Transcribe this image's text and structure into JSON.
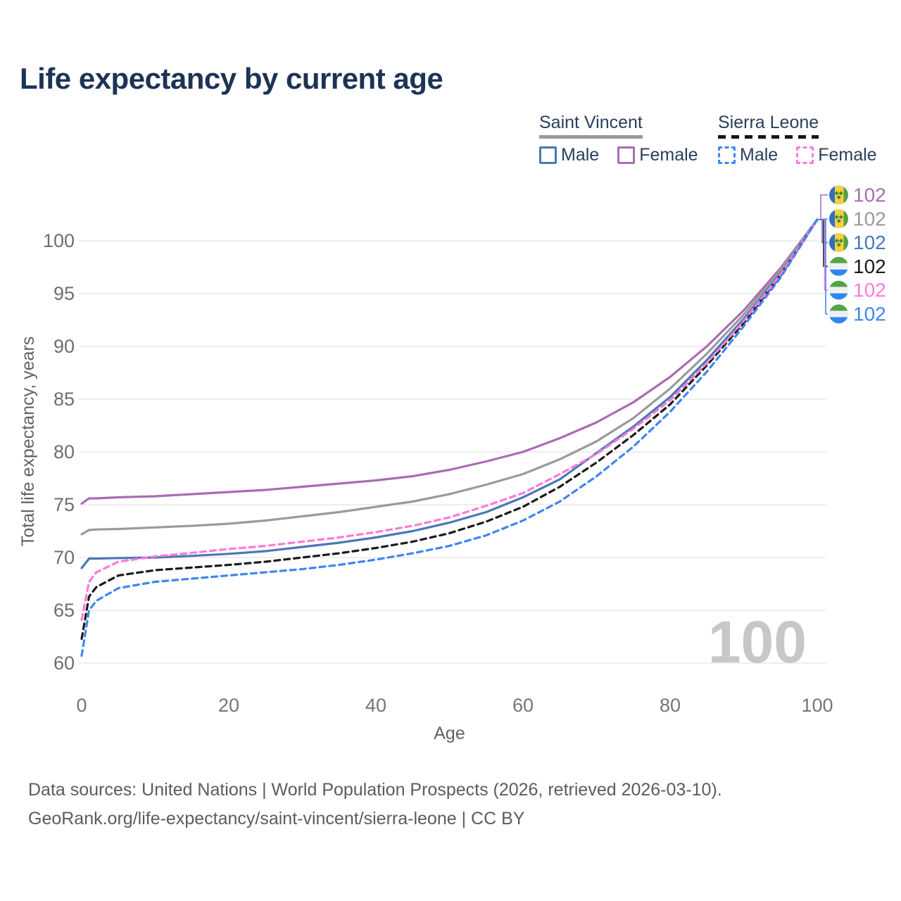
{
  "title": "Life expectancy by current age",
  "legend": {
    "groups": [
      {
        "name": "Saint Vincent",
        "line_style": "solid",
        "underline_color": "#9a9a9a",
        "items": [
          {
            "label": "Male",
            "color": "#4a78b5",
            "dashed": false
          },
          {
            "label": "Female",
            "color": "#a96cb3",
            "dashed": false
          }
        ]
      },
      {
        "name": "Sierra Leone",
        "line_style": "dashed",
        "underline_color": "#161616",
        "items": [
          {
            "label": "Male",
            "color": "#3f86f0",
            "dashed": true
          },
          {
            "label": "Female",
            "color": "#ff7ad9",
            "dashed": true
          }
        ]
      }
    ]
  },
  "watermark": "100",
  "footer": {
    "line1": "Data sources: United Nations | World Population Prospects (2026, retrieved 2026-03-10).",
    "line2": "GeoRank.org/life-expectancy/saint-vincent/sierra-leone | CC BY"
  },
  "chart_data": {
    "type": "line",
    "title": "Life expectancy by current age",
    "xlabel": "Age",
    "ylabel": "Total life expectancy, years",
    "xlim": [
      0,
      100
    ],
    "ylim": [
      58.5,
      103.5
    ],
    "xticks": [
      0,
      20,
      40,
      60,
      80,
      100
    ],
    "yticks": [
      60,
      65,
      70,
      75,
      80,
      85,
      90,
      95,
      100
    ],
    "grid": "horizontal-only",
    "legend_position": "top-right",
    "x": [
      0,
      1,
      2,
      5,
      10,
      15,
      20,
      25,
      30,
      35,
      40,
      45,
      50,
      55,
      60,
      65,
      70,
      75,
      80,
      85,
      90,
      95,
      100
    ],
    "series": [
      {
        "name": "Saint Vincent Female",
        "flag": "saint-vincent",
        "color": "#a96cb3",
        "dashed": false,
        "end_label": "102",
        "values": [
          75.1,
          75.6,
          75.6,
          75.7,
          75.8,
          76.0,
          76.2,
          76.4,
          76.7,
          77.0,
          77.3,
          77.7,
          78.3,
          79.1,
          80.0,
          81.3,
          82.8,
          84.7,
          87.1,
          90.0,
          93.4,
          97.4,
          102
        ]
      },
      {
        "name": "Saint Vincent Both sexes",
        "flag": "saint-vincent",
        "color": "#9a9a9a",
        "dashed": false,
        "end_label": "102",
        "values": [
          72.2,
          72.6,
          72.65,
          72.7,
          72.85,
          73.0,
          73.2,
          73.5,
          73.9,
          74.3,
          74.8,
          75.3,
          76.0,
          76.9,
          77.9,
          79.3,
          81.0,
          83.2,
          86.0,
          89.3,
          93.0,
          97.2,
          102
        ]
      },
      {
        "name": "Saint Vincent Male",
        "flag": "saint-vincent",
        "color": "#4a78b5",
        "dashed": false,
        "end_label": "102",
        "values": [
          69.0,
          69.9,
          69.9,
          69.95,
          70.0,
          70.15,
          70.35,
          70.6,
          71.0,
          71.4,
          71.9,
          72.5,
          73.3,
          74.3,
          75.7,
          77.4,
          79.9,
          82.4,
          85.2,
          88.7,
          92.6,
          96.9,
          102
        ]
      },
      {
        "name": "Sierra Leone Both sexes",
        "flag": "sierra-leone",
        "color": "#1b1b1b",
        "dashed": true,
        "end_label": "102",
        "values": [
          62.3,
          66.3,
          67.2,
          68.3,
          68.8,
          69.05,
          69.3,
          69.6,
          70.0,
          70.4,
          70.9,
          71.5,
          72.3,
          73.4,
          74.8,
          76.7,
          79.0,
          81.6,
          84.5,
          88.2,
          92.2,
          96.7,
          102
        ]
      },
      {
        "name": "Sierra Leone Female",
        "flag": "sierra-leone",
        "color": "#ff7ad9",
        "dashed": true,
        "end_label": "102",
        "values": [
          64.1,
          67.7,
          68.6,
          69.6,
          70.1,
          70.45,
          70.8,
          71.1,
          71.5,
          71.9,
          72.4,
          73.0,
          73.8,
          74.9,
          76.1,
          77.9,
          79.8,
          82.2,
          84.9,
          88.4,
          92.4,
          96.8,
          102
        ]
      },
      {
        "name": "Sierra Leone Male",
        "flag": "sierra-leone",
        "color": "#3f86f0",
        "dashed": true,
        "end_label": "102",
        "values": [
          60.7,
          65.0,
          65.9,
          67.1,
          67.7,
          68.0,
          68.3,
          68.6,
          68.9,
          69.3,
          69.8,
          70.4,
          71.1,
          72.1,
          73.5,
          75.3,
          77.7,
          80.5,
          83.8,
          87.6,
          91.9,
          96.5,
          102
        ]
      }
    ],
    "flag_colors": {
      "saint-vincent": {
        "blue": "#2f6fc4",
        "gold": "#f4cf3e",
        "green": "#55a046",
        "diamond": "#3d8b37"
      },
      "sierra-leone": {
        "green": "#52a447",
        "white": "#f0f0f0",
        "blue": "#2e86f0"
      }
    }
  }
}
